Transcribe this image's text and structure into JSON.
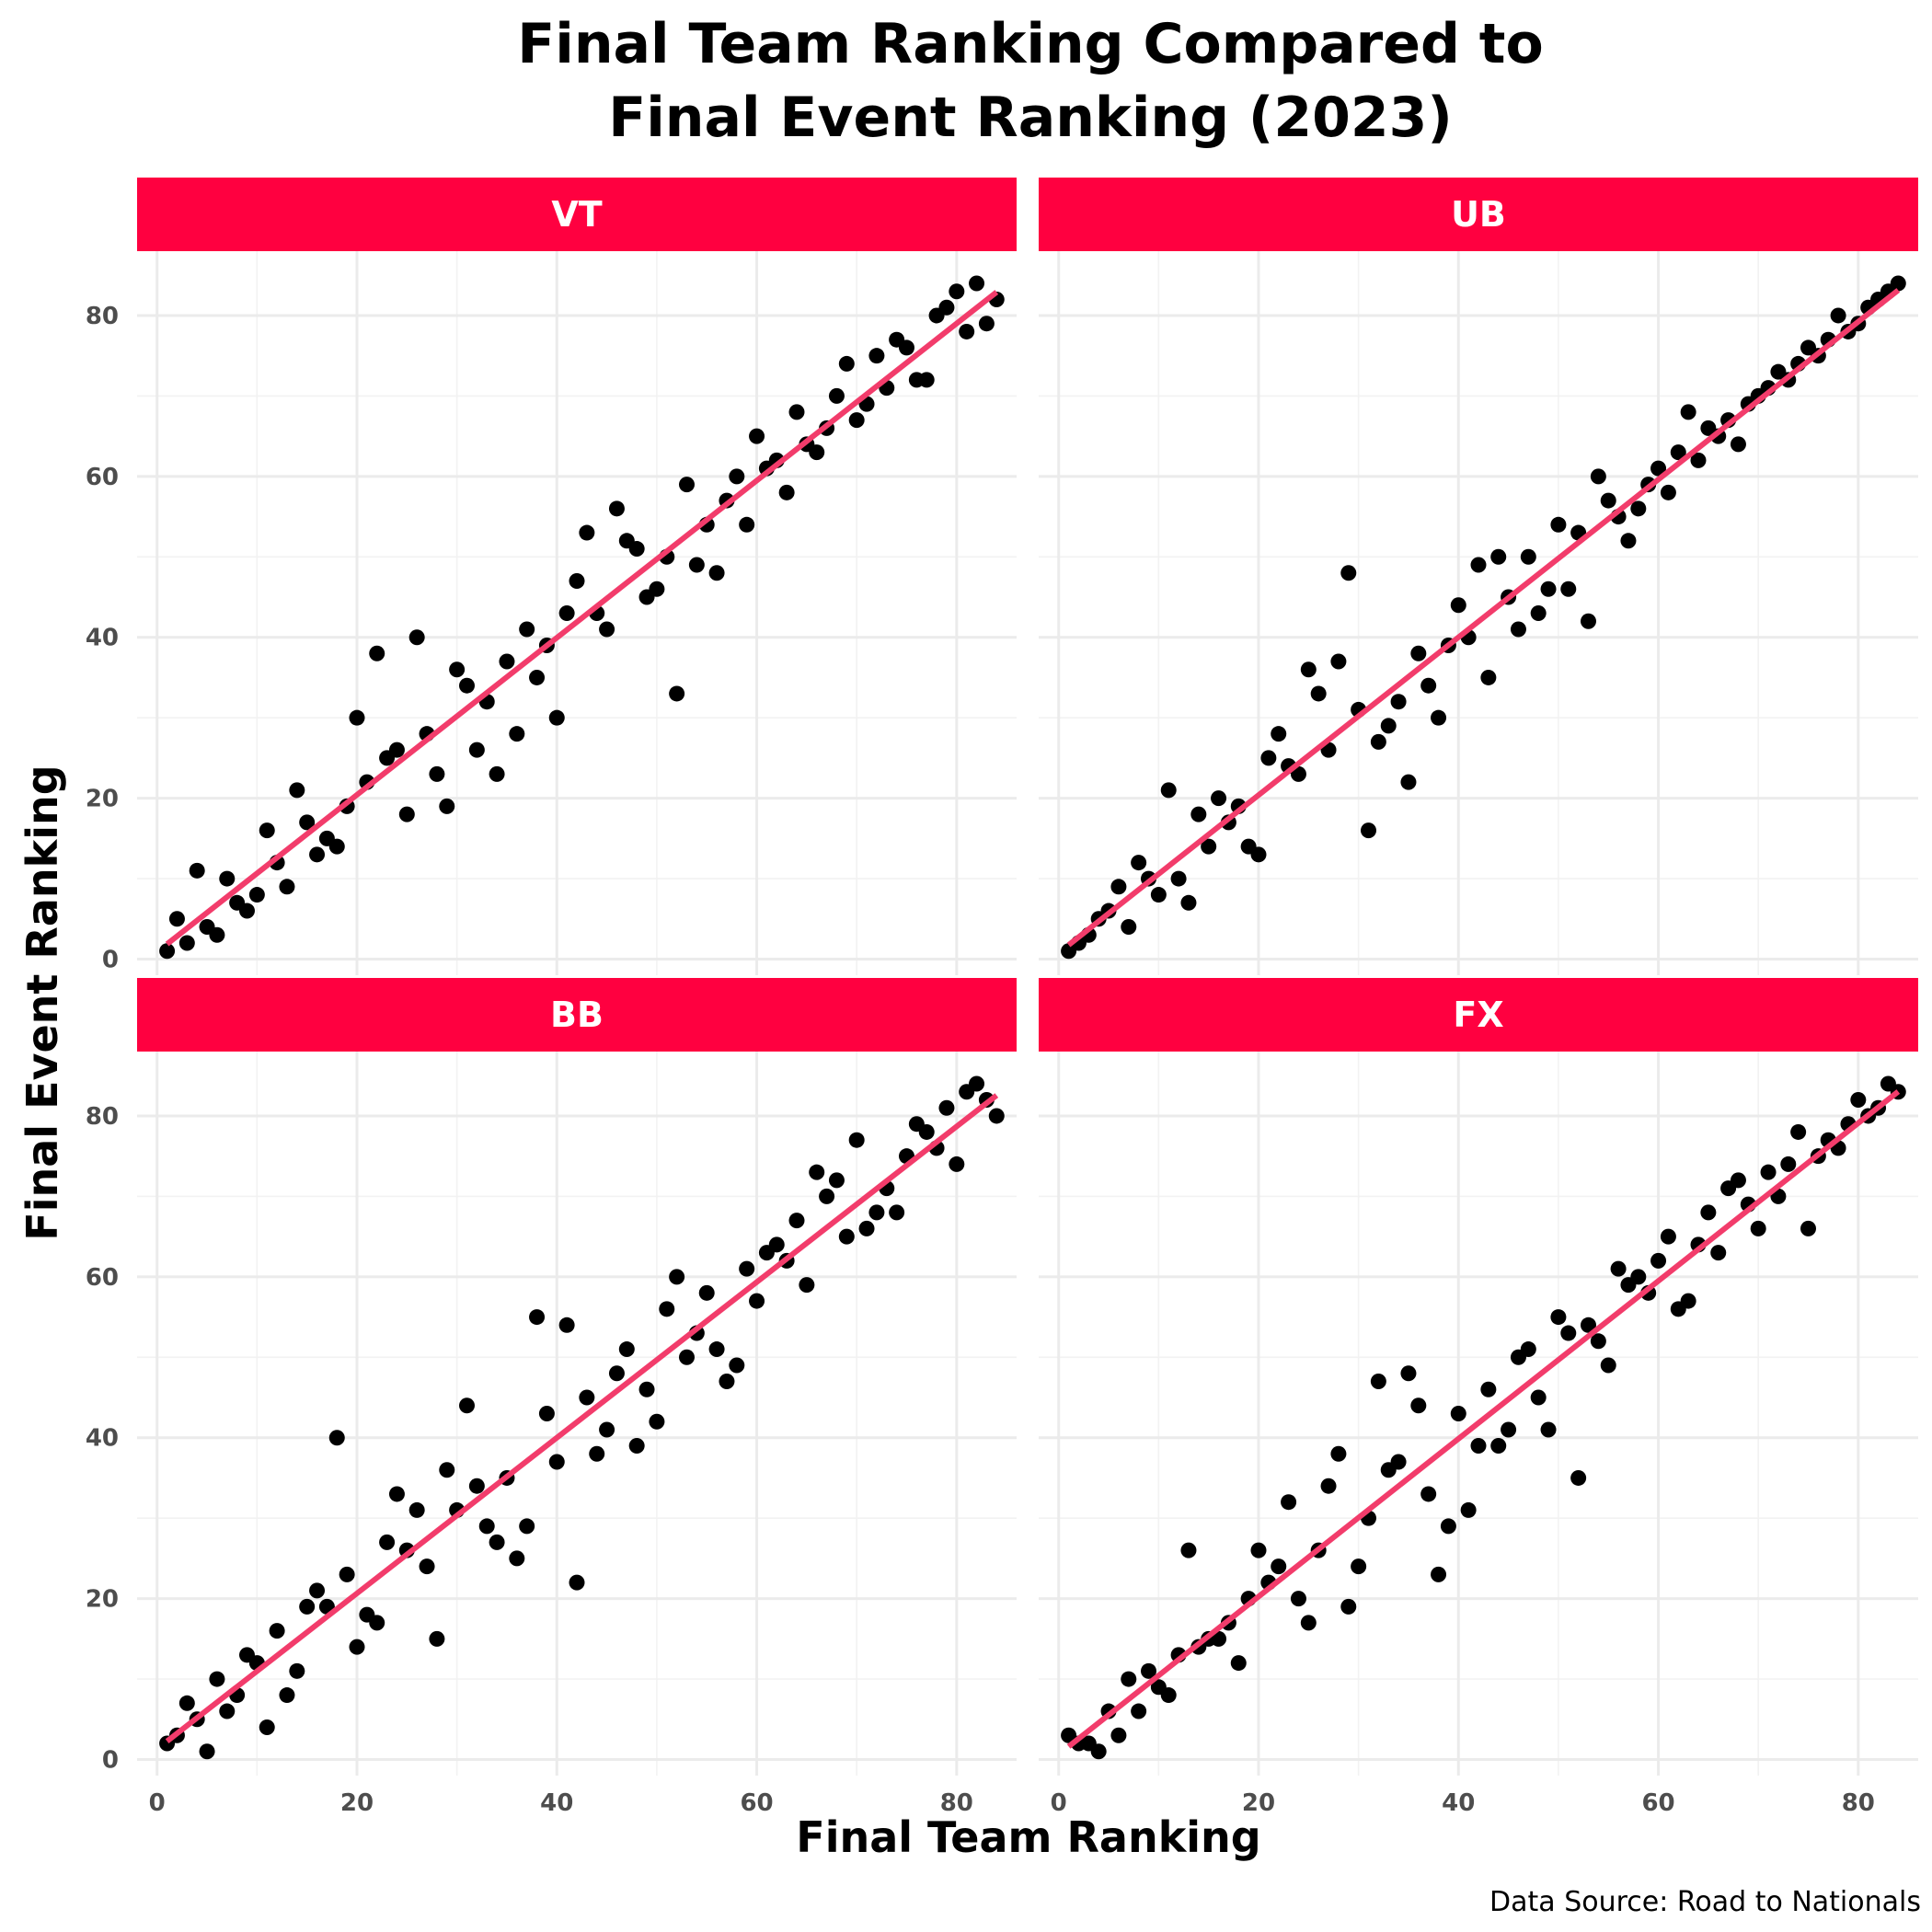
{
  "title_line1": "Final Team Ranking Compared to",
  "title_line2": "Final Event Ranking (2023)",
  "xlabel": "Final Team Ranking",
  "ylabel": "Final Event Ranking",
  "caption": "Data Source: Road to Nationals",
  "colors": {
    "strip": "#ff0040",
    "fit_line": "#f23c6b",
    "points": "#000000",
    "grid": "#ebebeb"
  },
  "chart_data": {
    "type": "scatter",
    "xlim": [
      -2,
      86
    ],
    "ylim": [
      -2,
      88
    ],
    "x_ticks": [
      0,
      20,
      40,
      60,
      80
    ],
    "y_ticks": [
      0,
      20,
      40,
      60,
      80
    ],
    "grid": true,
    "trendline": "linear",
    "panels": [
      {
        "label": "VT",
        "points": [
          [
            1,
            1
          ],
          [
            2,
            5
          ],
          [
            3,
            2
          ],
          [
            4,
            11
          ],
          [
            5,
            4
          ],
          [
            6,
            3
          ],
          [
            7,
            10
          ],
          [
            8,
            7
          ],
          [
            9,
            6
          ],
          [
            10,
            8
          ],
          [
            11,
            16
          ],
          [
            12,
            12
          ],
          [
            13,
            9
          ],
          [
            14,
            21
          ],
          [
            15,
            17
          ],
          [
            16,
            13
          ],
          [
            17,
            15
          ],
          [
            18,
            14
          ],
          [
            19,
            19
          ],
          [
            20,
            30
          ],
          [
            21,
            22
          ],
          [
            22,
            38
          ],
          [
            23,
            25
          ],
          [
            24,
            26
          ],
          [
            25,
            18
          ],
          [
            26,
            40
          ],
          [
            27,
            28
          ],
          [
            28,
            23
          ],
          [
            29,
            19
          ],
          [
            30,
            36
          ],
          [
            31,
            34
          ],
          [
            32,
            26
          ],
          [
            33,
            32
          ],
          [
            34,
            23
          ],
          [
            35,
            37
          ],
          [
            36,
            28
          ],
          [
            37,
            41
          ],
          [
            38,
            35
          ],
          [
            39,
            39
          ],
          [
            40,
            30
          ],
          [
            41,
            43
          ],
          [
            42,
            47
          ],
          [
            43,
            53
          ],
          [
            44,
            43
          ],
          [
            45,
            41
          ],
          [
            46,
            56
          ],
          [
            47,
            52
          ],
          [
            48,
            51
          ],
          [
            49,
            45
          ],
          [
            50,
            46
          ],
          [
            51,
            50
          ],
          [
            52,
            33
          ],
          [
            53,
            59
          ],
          [
            54,
            49
          ],
          [
            55,
            54
          ],
          [
            56,
            48
          ],
          [
            57,
            57
          ],
          [
            58,
            60
          ],
          [
            59,
            54
          ],
          [
            60,
            65
          ],
          [
            61,
            61
          ],
          [
            62,
            62
          ],
          [
            63,
            58
          ],
          [
            64,
            68
          ],
          [
            65,
            64
          ],
          [
            66,
            63
          ],
          [
            67,
            66
          ],
          [
            68,
            70
          ],
          [
            69,
            74
          ],
          [
            70,
            67
          ],
          [
            71,
            69
          ],
          [
            72,
            75
          ],
          [
            73,
            71
          ],
          [
            74,
            77
          ],
          [
            75,
            76
          ],
          [
            76,
            72
          ],
          [
            77,
            72
          ],
          [
            78,
            80
          ],
          [
            79,
            81
          ],
          [
            80,
            83
          ],
          [
            81,
            78
          ],
          [
            82,
            84
          ],
          [
            83,
            79
          ],
          [
            84,
            82
          ]
        ]
      },
      {
        "label": "UB",
        "points": [
          [
            1,
            1
          ],
          [
            2,
            2
          ],
          [
            3,
            3
          ],
          [
            4,
            5
          ],
          [
            5,
            6
          ],
          [
            6,
            9
          ],
          [
            7,
            4
          ],
          [
            8,
            12
          ],
          [
            9,
            10
          ],
          [
            10,
            8
          ],
          [
            11,
            21
          ],
          [
            12,
            10
          ],
          [
            13,
            7
          ],
          [
            14,
            18
          ],
          [
            15,
            14
          ],
          [
            16,
            20
          ],
          [
            17,
            17
          ],
          [
            18,
            19
          ],
          [
            19,
            14
          ],
          [
            20,
            13
          ],
          [
            21,
            25
          ],
          [
            22,
            28
          ],
          [
            23,
            24
          ],
          [
            24,
            23
          ],
          [
            25,
            36
          ],
          [
            26,
            33
          ],
          [
            27,
            26
          ],
          [
            28,
            37
          ],
          [
            29,
            48
          ],
          [
            30,
            31
          ],
          [
            31,
            16
          ],
          [
            32,
            27
          ],
          [
            33,
            29
          ],
          [
            34,
            32
          ],
          [
            35,
            22
          ],
          [
            36,
            38
          ],
          [
            37,
            34
          ],
          [
            38,
            30
          ],
          [
            39,
            39
          ],
          [
            40,
            44
          ],
          [
            41,
            40
          ],
          [
            42,
            49
          ],
          [
            43,
            35
          ],
          [
            44,
            50
          ],
          [
            45,
            45
          ],
          [
            46,
            41
          ],
          [
            47,
            50
          ],
          [
            48,
            43
          ],
          [
            49,
            46
          ],
          [
            50,
            54
          ],
          [
            51,
            46
          ],
          [
            52,
            53
          ],
          [
            53,
            42
          ],
          [
            54,
            60
          ],
          [
            55,
            57
          ],
          [
            56,
            55
          ],
          [
            57,
            52
          ],
          [
            58,
            56
          ],
          [
            59,
            59
          ],
          [
            60,
            61
          ],
          [
            61,
            58
          ],
          [
            62,
            63
          ],
          [
            63,
            68
          ],
          [
            64,
            62
          ],
          [
            65,
            66
          ],
          [
            66,
            65
          ],
          [
            67,
            67
          ],
          [
            68,
            64
          ],
          [
            69,
            69
          ],
          [
            70,
            70
          ],
          [
            71,
            71
          ],
          [
            72,
            73
          ],
          [
            73,
            72
          ],
          [
            74,
            74
          ],
          [
            75,
            76
          ],
          [
            76,
            75
          ],
          [
            77,
            77
          ],
          [
            78,
            80
          ],
          [
            79,
            78
          ],
          [
            80,
            79
          ],
          [
            81,
            81
          ],
          [
            82,
            82
          ],
          [
            83,
            83
          ],
          [
            84,
            84
          ]
        ]
      },
      {
        "label": "BB",
        "points": [
          [
            1,
            2
          ],
          [
            2,
            3
          ],
          [
            3,
            7
          ],
          [
            4,
            5
          ],
          [
            5,
            1
          ],
          [
            6,
            10
          ],
          [
            7,
            6
          ],
          [
            8,
            8
          ],
          [
            9,
            13
          ],
          [
            10,
            12
          ],
          [
            11,
            4
          ],
          [
            12,
            16
          ],
          [
            13,
            8
          ],
          [
            14,
            11
          ],
          [
            15,
            19
          ],
          [
            16,
            21
          ],
          [
            17,
            19
          ],
          [
            18,
            40
          ],
          [
            19,
            23
          ],
          [
            20,
            14
          ],
          [
            21,
            18
          ],
          [
            22,
            17
          ],
          [
            23,
            27
          ],
          [
            24,
            33
          ],
          [
            25,
            26
          ],
          [
            26,
            31
          ],
          [
            27,
            24
          ],
          [
            28,
            15
          ],
          [
            29,
            36
          ],
          [
            30,
            31
          ],
          [
            31,
            44
          ],
          [
            32,
            34
          ],
          [
            33,
            29
          ],
          [
            34,
            27
          ],
          [
            35,
            35
          ],
          [
            36,
            25
          ],
          [
            37,
            29
          ],
          [
            38,
            55
          ],
          [
            39,
            43
          ],
          [
            40,
            37
          ],
          [
            41,
            54
          ],
          [
            42,
            22
          ],
          [
            43,
            45
          ],
          [
            44,
            38
          ],
          [
            45,
            41
          ],
          [
            46,
            48
          ],
          [
            47,
            51
          ],
          [
            48,
            39
          ],
          [
            49,
            46
          ],
          [
            50,
            42
          ],
          [
            51,
            56
          ],
          [
            52,
            60
          ],
          [
            53,
            50
          ],
          [
            54,
            53
          ],
          [
            55,
            58
          ],
          [
            56,
            51
          ],
          [
            57,
            47
          ],
          [
            58,
            49
          ],
          [
            59,
            61
          ],
          [
            60,
            57
          ],
          [
            61,
            63
          ],
          [
            62,
            64
          ],
          [
            63,
            62
          ],
          [
            64,
            67
          ],
          [
            65,
            59
          ],
          [
            66,
            73
          ],
          [
            67,
            70
          ],
          [
            68,
            72
          ],
          [
            69,
            65
          ],
          [
            70,
            77
          ],
          [
            71,
            66
          ],
          [
            72,
            68
          ],
          [
            73,
            71
          ],
          [
            74,
            68
          ],
          [
            75,
            75
          ],
          [
            76,
            79
          ],
          [
            77,
            78
          ],
          [
            78,
            76
          ],
          [
            79,
            81
          ],
          [
            80,
            74
          ],
          [
            81,
            83
          ],
          [
            82,
            84
          ],
          [
            83,
            82
          ],
          [
            84,
            80
          ]
        ]
      },
      {
        "label": "FX",
        "points": [
          [
            1,
            3
          ],
          [
            2,
            2
          ],
          [
            3,
            2
          ],
          [
            4,
            1
          ],
          [
            5,
            6
          ],
          [
            6,
            3
          ],
          [
            7,
            10
          ],
          [
            8,
            6
          ],
          [
            9,
            11
          ],
          [
            10,
            9
          ],
          [
            11,
            8
          ],
          [
            12,
            13
          ],
          [
            13,
            26
          ],
          [
            14,
            14
          ],
          [
            15,
            15
          ],
          [
            16,
            15
          ],
          [
            17,
            17
          ],
          [
            18,
            12
          ],
          [
            19,
            20
          ],
          [
            20,
            26
          ],
          [
            21,
            22
          ],
          [
            22,
            24
          ],
          [
            23,
            32
          ],
          [
            24,
            20
          ],
          [
            25,
            17
          ],
          [
            26,
            26
          ],
          [
            27,
            34
          ],
          [
            28,
            38
          ],
          [
            29,
            19
          ],
          [
            30,
            24
          ],
          [
            31,
            30
          ],
          [
            32,
            47
          ],
          [
            33,
            36
          ],
          [
            34,
            37
          ],
          [
            35,
            48
          ],
          [
            36,
            44
          ],
          [
            37,
            33
          ],
          [
            38,
            23
          ],
          [
            39,
            29
          ],
          [
            40,
            43
          ],
          [
            41,
            31
          ],
          [
            42,
            39
          ],
          [
            43,
            46
          ],
          [
            44,
            39
          ],
          [
            45,
            41
          ],
          [
            46,
            50
          ],
          [
            47,
            51
          ],
          [
            48,
            45
          ],
          [
            49,
            41
          ],
          [
            50,
            55
          ],
          [
            51,
            53
          ],
          [
            52,
            35
          ],
          [
            53,
            54
          ],
          [
            54,
            52
          ],
          [
            55,
            49
          ],
          [
            56,
            61
          ],
          [
            57,
            59
          ],
          [
            58,
            60
          ],
          [
            59,
            58
          ],
          [
            60,
            62
          ],
          [
            61,
            65
          ],
          [
            62,
            56
          ],
          [
            63,
            57
          ],
          [
            64,
            64
          ],
          [
            65,
            68
          ],
          [
            66,
            63
          ],
          [
            67,
            71
          ],
          [
            68,
            72
          ],
          [
            69,
            69
          ],
          [
            70,
            66
          ],
          [
            71,
            73
          ],
          [
            72,
            70
          ],
          [
            73,
            74
          ],
          [
            74,
            78
          ],
          [
            75,
            66
          ],
          [
            76,
            75
          ],
          [
            77,
            77
          ],
          [
            78,
            76
          ],
          [
            79,
            79
          ],
          [
            80,
            82
          ],
          [
            81,
            80
          ],
          [
            82,
            81
          ],
          [
            83,
            84
          ],
          [
            84,
            83
          ]
        ]
      }
    ]
  }
}
